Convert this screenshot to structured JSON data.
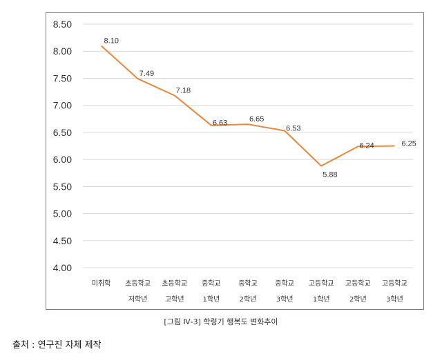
{
  "chart_data": {
    "type": "line",
    "categories": [
      [
        "미취학",
        ""
      ],
      [
        "초등학교",
        "저학년"
      ],
      [
        "초등학교",
        "고학년"
      ],
      [
        "중학교",
        "1학년"
      ],
      [
        "중학교",
        "2학년"
      ],
      [
        "중학교",
        "3학년"
      ],
      [
        "고등학교",
        "1학년"
      ],
      [
        "고등학교",
        "2학년"
      ],
      [
        "고등학교",
        "3학년"
      ]
    ],
    "values": [
      8.1,
      7.49,
      7.18,
      6.63,
      6.65,
      6.53,
      5.88,
      6.24,
      6.25
    ],
    "value_labels": [
      "8.10",
      "7.49",
      "7.18",
      "6.63",
      "6.65",
      "6.53",
      "5.88",
      "6.24",
      "6.25"
    ],
    "ylim": [
      4.0,
      8.5
    ],
    "yticks": [
      "4.00",
      "4.50",
      "5.00",
      "5.50",
      "6.00",
      "6.50",
      "7.00",
      "7.50",
      "8.00",
      "8.50"
    ],
    "line_color": "#e8873a",
    "grid": true,
    "grid_color": "#d9d9d9"
  },
  "caption": "[그림 Ⅳ-3] 학령기 행복도 변화추이",
  "source": "출처 : 연구진 자체 제작"
}
